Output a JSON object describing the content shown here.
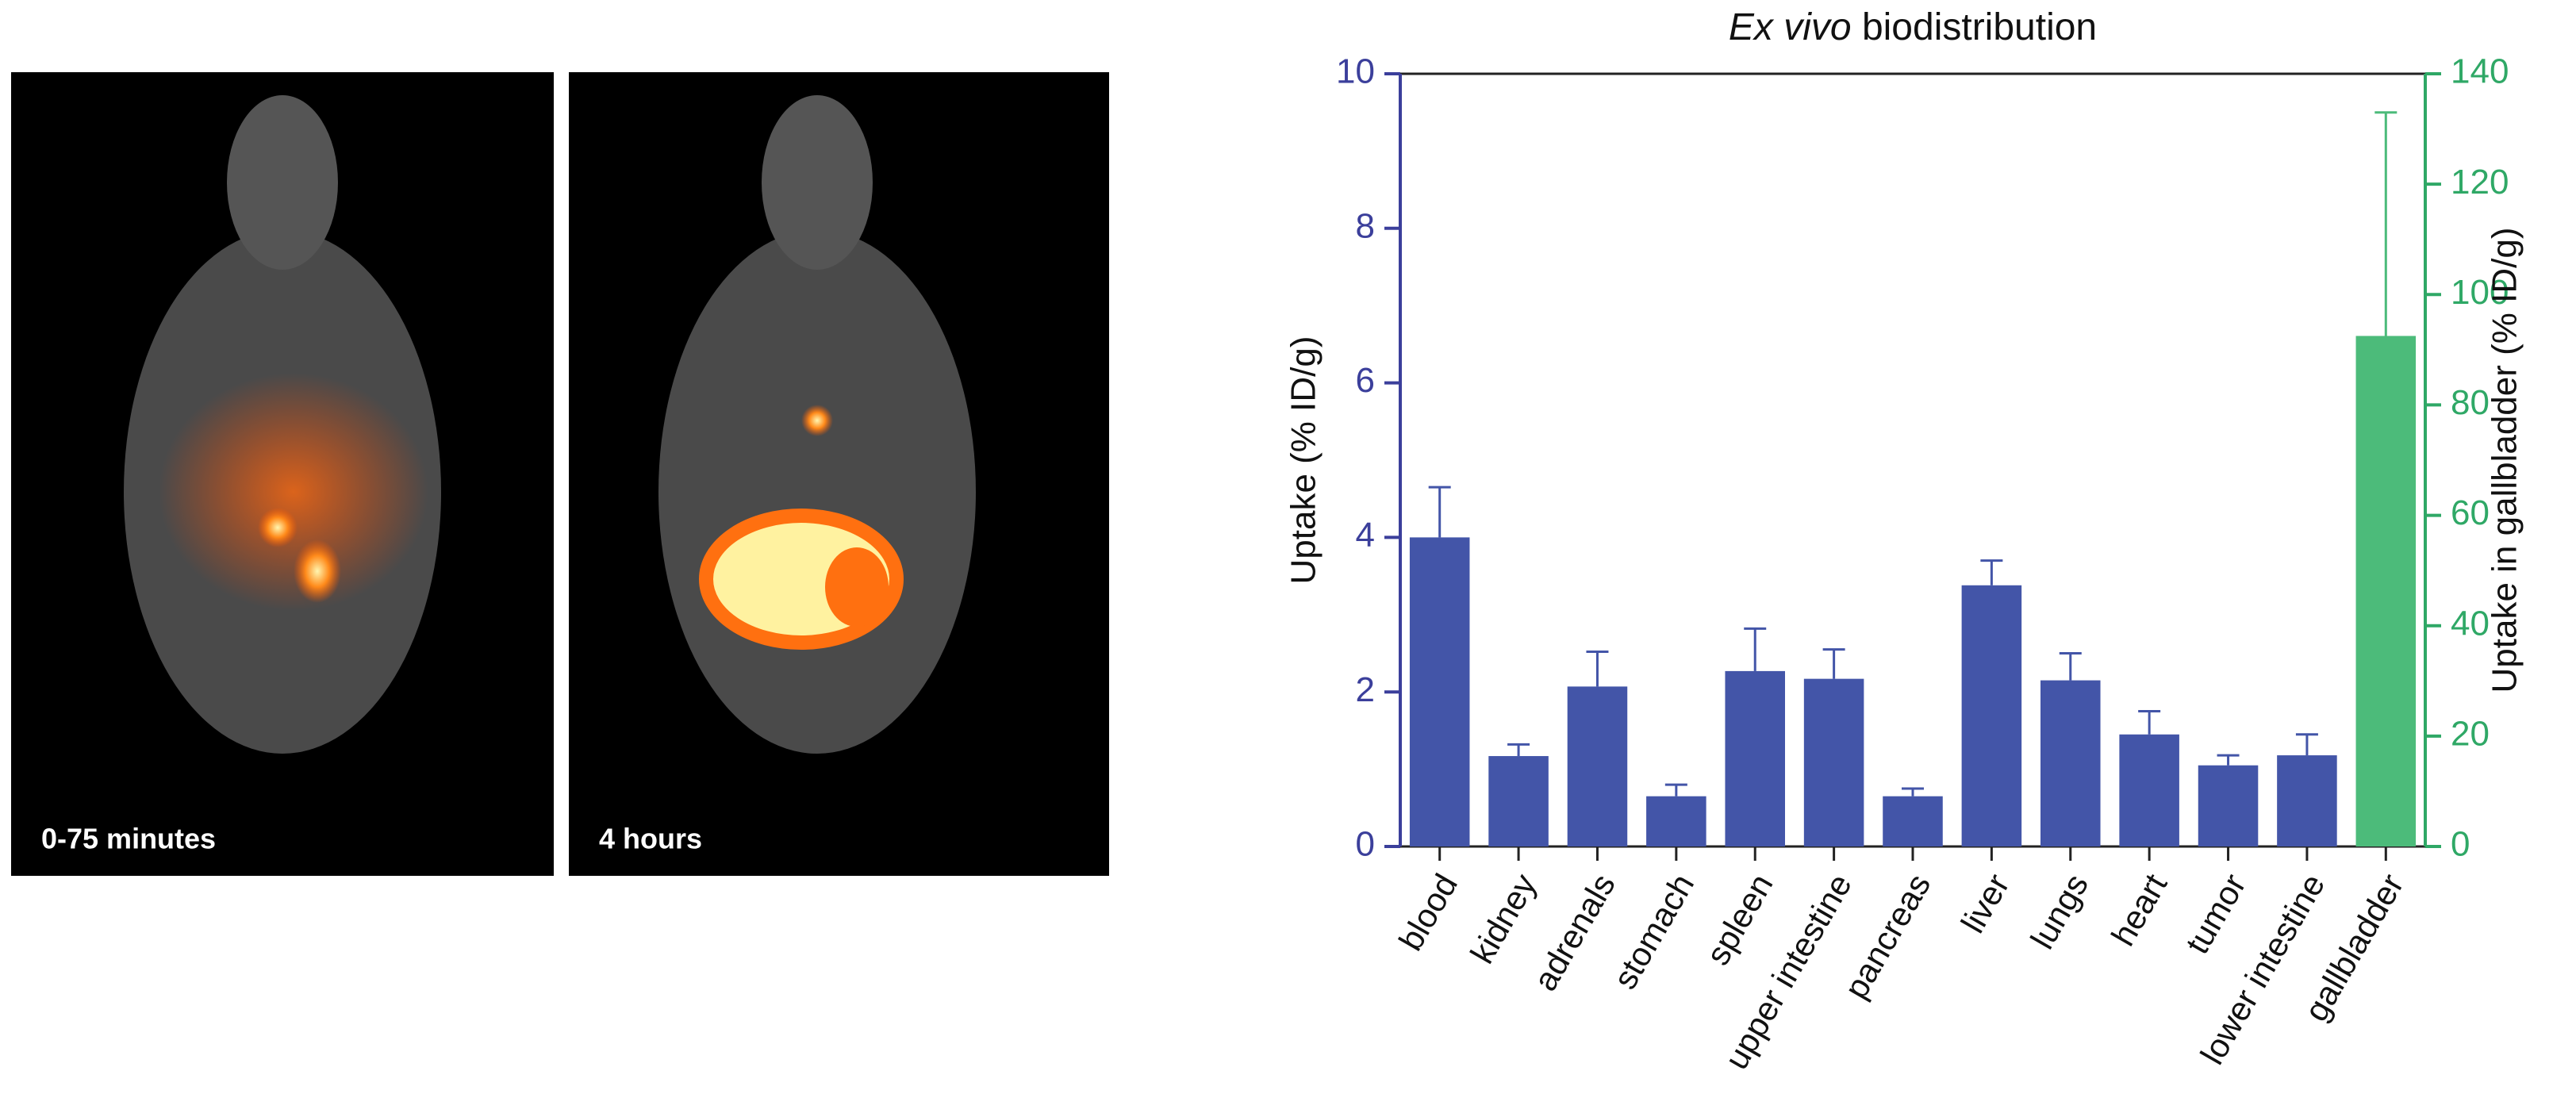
{
  "panels": [
    {
      "label": "0-75 minutes"
    },
    {
      "label": "4 hours"
    }
  ],
  "chart_data": {
    "type": "bar",
    "title": [
      "Ex vivo",
      "biodistribution"
    ],
    "categories": [
      "blood",
      "kidney",
      "adrenals",
      "stomach",
      "spleen",
      "upper intestine",
      "pancreas",
      "liver",
      "lungs",
      "heart",
      "tumor",
      "lower intestine",
      "gallbladder"
    ],
    "series": [
      {
        "color": "#4355a8",
        "axis": "y",
        "values": [
          4.0,
          1.17,
          2.07,
          0.65,
          2.27,
          2.17,
          0.65,
          3.38,
          2.15,
          1.45,
          1.05,
          1.18,
          null
        ],
        "errors": [
          0.65,
          0.15,
          0.45,
          0.15,
          0.55,
          0.38,
          0.1,
          0.32,
          0.35,
          0.3,
          0.13,
          0.27,
          null
        ]
      },
      {
        "color": "#4cbb7a",
        "axis": "y2",
        "values": [
          null,
          null,
          null,
          null,
          null,
          null,
          null,
          null,
          null,
          null,
          null,
          null,
          92.5
        ],
        "errors": [
          null,
          null,
          null,
          null,
          null,
          null,
          null,
          null,
          null,
          null,
          null,
          null,
          40.5
        ]
      }
    ],
    "ylabel": "Uptake (% ID/g)",
    "y2label": "Uptake in gallbladder (% ID/g)",
    "ylim": [
      0,
      10
    ],
    "yticks": [
      0,
      2,
      4,
      6,
      8,
      10
    ],
    "ycolor": "#3b3f9b",
    "y2lim": [
      0,
      140
    ],
    "y2ticks": [
      0,
      20,
      40,
      60,
      80,
      100,
      120,
      140
    ],
    "y2color": "#2fa866"
  }
}
